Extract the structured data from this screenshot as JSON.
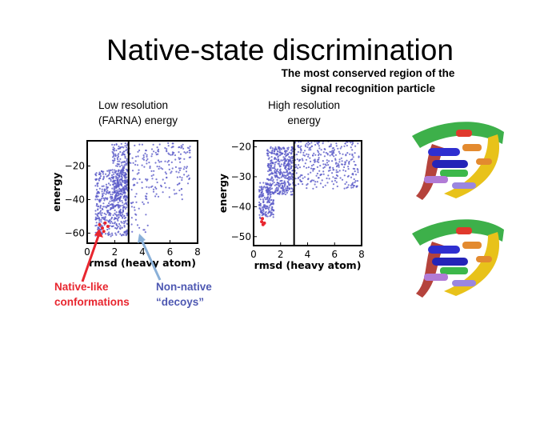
{
  "slide": {
    "title": "Native-state discrimination",
    "subtitle_line1": "The most conserved region of the",
    "subtitle_line2": "signal recognition particle",
    "low_label_line1": "Low resolution",
    "low_label_line2": "(FARNA) energy",
    "high_label_line1": "High resolution",
    "high_label_line2": "energy",
    "native_line1": "Native-like",
    "native_line2": "conformations",
    "decoy_line1": "Non-native",
    "decoy_line2": "“decoys”"
  },
  "colors": {
    "decoys": "#5a5ac8",
    "native": "#e8262f",
    "arrow_native": "#e8262f",
    "arrow_decoy": "#8ab0d8"
  },
  "chart_data": [
    {
      "type": "scatter",
      "xlabel": "rmsd (heavy atom)",
      "ylabel": "energy",
      "xlim": [
        0,
        8.0
      ],
      "ylim": [
        -66,
        -5
      ],
      "xticks": [
        0,
        2,
        4,
        6,
        8
      ],
      "yticks": [
        -20,
        -40,
        -60
      ],
      "cutoff_x": 3,
      "native_points": [
        [
          0.9,
          -55
        ],
        [
          1.1,
          -57
        ],
        [
          1.3,
          -54
        ],
        [
          1.5,
          -56
        ],
        [
          1.2,
          -59
        ]
      ],
      "decoy_clusters": [
        {
          "x_range": [
            0.6,
            3.0
          ],
          "y_range": [
            -62,
            -22
          ],
          "count": 520
        },
        {
          "x_range": [
            1.8,
            3.0
          ],
          "y_range": [
            -50,
            -6
          ],
          "count": 220
        },
        {
          "x_range": [
            3.0,
            7.5
          ],
          "y_range": [
            -40,
            -6
          ],
          "count": 200
        },
        {
          "x_range": [
            3.0,
            4.5
          ],
          "y_range": [
            -60,
            -40
          ],
          "count": 25
        }
      ]
    },
    {
      "type": "scatter",
      "xlabel": "rmsd (heavy atom)",
      "ylabel": "energy",
      "xlim": [
        0,
        8.0
      ],
      "ylim": [
        -53,
        -18
      ],
      "xticks": [
        0,
        2,
        4,
        6,
        8
      ],
      "yticks": [
        -20,
        -30,
        -40,
        -50
      ],
      "cutoff_x": 3,
      "native_points": [
        [
          0.6,
          -45
        ],
        [
          0.7,
          -46
        ],
        [
          0.8,
          -45.5
        ],
        [
          0.65,
          -44
        ]
      ],
      "decoy_clusters": [
        {
          "x_range": [
            0.4,
            1.5
          ],
          "y_range": [
            -44,
            -32
          ],
          "count": 180
        },
        {
          "x_range": [
            1.0,
            3.0
          ],
          "y_range": [
            -36,
            -20
          ],
          "count": 420
        },
        {
          "x_range": [
            3.0,
            7.8
          ],
          "y_range": [
            -34,
            -18
          ],
          "count": 320
        }
      ]
    }
  ]
}
